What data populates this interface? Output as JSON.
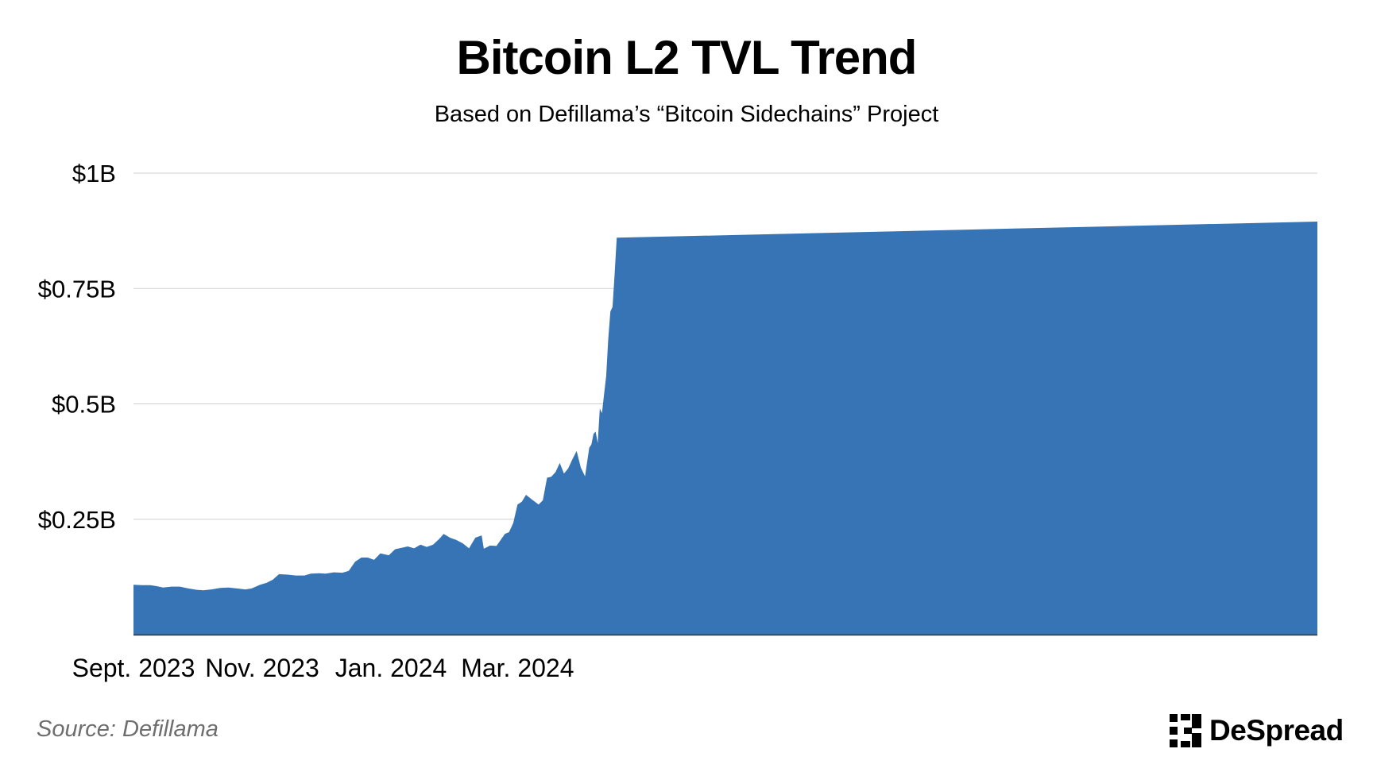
{
  "title": "Bitcoin L2 TVL Trend",
  "subtitle": "Based on Defillama’s “Bitcoin Sidechains” Project",
  "source": "Source: Defillama",
  "brand": {
    "name": "DeSpread"
  },
  "colors": {
    "area": "#3674b5",
    "grid": "#cfcfcf",
    "axis": "#333333",
    "source": "#6e6e6e"
  },
  "chart_data": {
    "type": "area",
    "title": "Bitcoin L2 TVL Trend",
    "subtitle": "Based on Defillama’s “Bitcoin Sidechains” Project",
    "xlabel": "",
    "ylabel": "",
    "x_start": "2023-09-01",
    "x_end": "2024-04-13",
    "x_ticks": [
      {
        "date": "2023-09-01",
        "label": "Sept. 2023"
      },
      {
        "date": "2023-11-01",
        "label": "Nov. 2023"
      },
      {
        "date": "2024-01-01",
        "label": "Jan. 2024"
      },
      {
        "date": "2024-03-01",
        "label": "Mar. 2024"
      }
    ],
    "y_ticks": [
      {
        "value": 0.25,
        "label": "$0.25B"
      },
      {
        "value": 0.5,
        "label": "$0.5B"
      },
      {
        "value": 0.75,
        "label": "$0.75B"
      },
      {
        "value": 1.0,
        "label": "$1B"
      }
    ],
    "ylim": [
      0,
      1.0
    ],
    "grid": true,
    "series": [
      {
        "points": [
          [
            "2023-09-01",
            0.108
          ],
          [
            "2023-09-05",
            0.107
          ],
          [
            "2023-09-09",
            0.107
          ],
          [
            "2023-09-12",
            0.105
          ],
          [
            "2023-09-15",
            0.102
          ],
          [
            "2023-09-19",
            0.104
          ],
          [
            "2023-09-23",
            0.104
          ],
          [
            "2023-09-27",
            0.1
          ],
          [
            "2023-10-01",
            0.097
          ],
          [
            "2023-10-04",
            0.096
          ],
          [
            "2023-10-08",
            0.098
          ],
          [
            "2023-10-12",
            0.101
          ],
          [
            "2023-10-16",
            0.102
          ],
          [
            "2023-10-20",
            0.1
          ],
          [
            "2023-10-24",
            0.098
          ],
          [
            "2023-10-27",
            0.1
          ],
          [
            "2023-10-31",
            0.108
          ],
          [
            "2023-11-03",
            0.112
          ],
          [
            "2023-11-06",
            0.119
          ],
          [
            "2023-11-09",
            0.131
          ],
          [
            "2023-11-13",
            0.13
          ],
          [
            "2023-11-17",
            0.128
          ],
          [
            "2023-11-21",
            0.128
          ],
          [
            "2023-11-24",
            0.132
          ],
          [
            "2023-11-28",
            0.133
          ],
          [
            "2023-12-01",
            0.132
          ],
          [
            "2023-12-05",
            0.135
          ],
          [
            "2023-12-09",
            0.134
          ],
          [
            "2023-12-12",
            0.138
          ],
          [
            "2023-12-15",
            0.158
          ],
          [
            "2023-12-18",
            0.167
          ],
          [
            "2023-12-21",
            0.167
          ],
          [
            "2023-12-24",
            0.162
          ],
          [
            "2023-12-27",
            0.176
          ],
          [
            "2023-12-31",
            0.172
          ],
          [
            "2024-01-03",
            0.185
          ],
          [
            "2024-01-06",
            0.188
          ],
          [
            "2024-01-09",
            0.191
          ],
          [
            "2024-01-12",
            0.187
          ],
          [
            "2024-01-15",
            0.195
          ],
          [
            "2024-01-18",
            0.19
          ],
          [
            "2024-01-21",
            0.195
          ],
          [
            "2024-01-24",
            0.208
          ],
          [
            "2024-01-26",
            0.218
          ],
          [
            "2024-01-29",
            0.21
          ],
          [
            "2024-02-01",
            0.205
          ],
          [
            "2024-02-04",
            0.198
          ],
          [
            "2024-02-07",
            0.187
          ],
          [
            "2024-02-10",
            0.21
          ],
          [
            "2024-02-13",
            0.215
          ],
          [
            "2024-02-14",
            0.186
          ],
          [
            "2024-02-17",
            0.193
          ],
          [
            "2024-02-20",
            0.192
          ],
          [
            "2024-02-22",
            0.205
          ],
          [
            "2024-02-24",
            0.218
          ],
          [
            "2024-02-26",
            0.222
          ],
          [
            "2024-02-28",
            0.242
          ],
          [
            "2024-03-01",
            0.282
          ],
          [
            "2024-03-03",
            0.288
          ],
          [
            "2024-03-05",
            0.303
          ],
          [
            "2024-03-08",
            0.292
          ],
          [
            "2024-03-11",
            0.282
          ],
          [
            "2024-03-13",
            0.291
          ],
          [
            "2024-03-15",
            0.34
          ],
          [
            "2024-03-17",
            0.342
          ],
          [
            "2024-03-19",
            0.352
          ],
          [
            "2024-03-21",
            0.372
          ],
          [
            "2024-03-23",
            0.349
          ],
          [
            "2024-03-25",
            0.36
          ],
          [
            "2024-03-27",
            0.38
          ],
          [
            "2024-03-29",
            0.398
          ],
          [
            "2024-03-31",
            0.362
          ],
          [
            "2024-04-02",
            0.343
          ],
          [
            "2024-04-04",
            0.405
          ],
          [
            "2024-04-05",
            0.412
          ],
          [
            "2024-04-06",
            0.435
          ],
          [
            "2024-04-07",
            0.44
          ],
          [
            "2024-04-08",
            0.415
          ],
          [
            "2024-04-09",
            0.49
          ],
          [
            "2024-04-10",
            0.48
          ],
          [
            "2024-04-11",
            0.52
          ],
          [
            "2024-04-12",
            0.56
          ],
          [
            "2024-04-13",
            0.64
          ],
          [
            "2024-04-14",
            0.7
          ],
          [
            "2024-04-15",
            0.71
          ],
          [
            "2024-04-16",
            0.78
          ],
          [
            "2024-04-17",
            0.86
          ],
          [
            "2024-04-17",
            0.895
          ]
        ]
      }
    ]
  }
}
